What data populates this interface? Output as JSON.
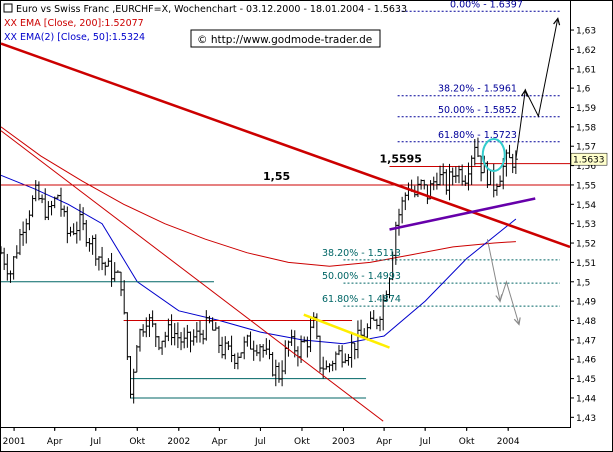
{
  "header": {
    "line1": "Euro vs Swiss Franc ,EURCHF=X, Wochenchart - 03.12.2000 - 18.01.2004 - 1.5633",
    "line2": "XX EMA [Close, 200]:1.52077",
    "line3": "XX EMA(2) [Close, 50]:1.5324",
    "copyright": "© http://www.godmode-trader.de"
  },
  "colors": {
    "price": "#000000",
    "ema200": "#cc0000",
    "ema50": "#0000cc",
    "resistance": "#cc0000",
    "support": "#006666",
    "fib_upper": "#000099",
    "fib_lower": "#006666",
    "wedge": "#6600aa",
    "yellow_line": "#ffee00",
    "circle": "#33cccc"
  },
  "chart_data": {
    "type": "line",
    "title": "Euro vs Swiss Franc ,EURCHF=X, Wochenchart - 03.12.2000 - 18.01.2004 - 1.5633",
    "ylim": [
      1.425,
      1.645
    ],
    "x_range": [
      "2000-12-03",
      "2004-05-17"
    ],
    "y_ticks": [
      "1,63",
      "1,62",
      "1,61",
      "1,6",
      "1,59",
      "1,58",
      "1,57",
      "1,56",
      "1,55",
      "1,54",
      "1,53",
      "1,52",
      "1,51",
      "1,5",
      "1,49",
      "1,48",
      "1,47",
      "1,46",
      "1,45",
      "1,44",
      "1,43"
    ],
    "y_tick_values": [
      1.63,
      1.62,
      1.61,
      1.6,
      1.59,
      1.58,
      1.57,
      1.56,
      1.55,
      1.54,
      1.53,
      1.52,
      1.51,
      1.5,
      1.49,
      1.48,
      1.47,
      1.46,
      1.45,
      1.44,
      1.43
    ],
    "x_ticks": [
      {
        "label": "2001",
        "date": "2001-01-01"
      },
      {
        "label": "Apr",
        "date": "2001-04-01"
      },
      {
        "label": "Jul",
        "date": "2001-07-01"
      },
      {
        "label": "Okt",
        "date": "2001-10-01"
      },
      {
        "label": "2002",
        "date": "2002-01-01"
      },
      {
        "label": "Apr",
        "date": "2002-04-01"
      },
      {
        "label": "Jul",
        "date": "2002-07-01"
      },
      {
        "label": "Okt",
        "date": "2002-10-01"
      },
      {
        "label": "2003",
        "date": "2003-01-01"
      },
      {
        "label": "Apr",
        "date": "2003-04-01"
      },
      {
        "label": "Jul",
        "date": "2003-07-01"
      },
      {
        "label": "Okt",
        "date": "2003-10-01"
      },
      {
        "label": "2004",
        "date": "2004-01-01"
      }
    ],
    "last_price": "1.5633",
    "price_anchors": [
      [
        "2000-12-03",
        1.515
      ],
      [
        "2000-12-24",
        1.505
      ],
      [
        "2001-01-21",
        1.53
      ],
      [
        "2001-02-18",
        1.545
      ],
      [
        "2001-03-18",
        1.535
      ],
      [
        "2001-04-08",
        1.545
      ],
      [
        "2001-04-29",
        1.525
      ],
      [
        "2001-05-27",
        1.53
      ],
      [
        "2001-06-24",
        1.52
      ],
      [
        "2001-07-15",
        1.51
      ],
      [
        "2001-08-05",
        1.505
      ],
      [
        "2001-08-26",
        1.5
      ],
      [
        "2001-09-16",
        1.442
      ],
      [
        "2001-09-30",
        1.47
      ],
      [
        "2001-10-21",
        1.482
      ],
      [
        "2001-11-18",
        1.47
      ],
      [
        "2001-12-16",
        1.475
      ],
      [
        "2002-01-13",
        1.468
      ],
      [
        "2002-02-10",
        1.472
      ],
      [
        "2002-03-10",
        1.478
      ],
      [
        "2002-04-07",
        1.465
      ],
      [
        "2002-05-05",
        1.462
      ],
      [
        "2002-06-02",
        1.468
      ],
      [
        "2002-06-30",
        1.468
      ],
      [
        "2002-07-21",
        1.458
      ],
      [
        "2002-08-11",
        1.452
      ],
      [
        "2002-09-01",
        1.468
      ],
      [
        "2002-09-22",
        1.465
      ],
      [
        "2002-10-13",
        1.47
      ],
      [
        "2002-10-27",
        1.478
      ],
      [
        "2002-11-10",
        1.458
      ],
      [
        "2002-11-24",
        1.455
      ],
      [
        "2002-12-15",
        1.462
      ],
      [
        "2003-01-12",
        1.465
      ],
      [
        "2003-02-02",
        1.47
      ],
      [
        "2003-02-23",
        1.475
      ],
      [
        "2003-03-16",
        1.48
      ],
      [
        "2003-03-30",
        1.49
      ],
      [
        "2003-04-13",
        1.505
      ],
      [
        "2003-04-27",
        1.53
      ],
      [
        "2003-05-11",
        1.54
      ],
      [
        "2003-05-25",
        1.55
      ],
      [
        "2003-06-08",
        1.545
      ],
      [
        "2003-06-22",
        1.55
      ],
      [
        "2003-07-06",
        1.545
      ],
      [
        "2003-07-27",
        1.555
      ],
      [
        "2003-08-17",
        1.55
      ],
      [
        "2003-09-07",
        1.558
      ],
      [
        "2003-09-28",
        1.555
      ],
      [
        "2003-10-19",
        1.572
      ],
      [
        "2003-11-02",
        1.56
      ],
      [
        "2003-11-16",
        1.555
      ],
      [
        "2003-11-30",
        1.55
      ],
      [
        "2003-12-14",
        1.556
      ],
      [
        "2003-12-28",
        1.562
      ],
      [
        "2004-01-18",
        1.5633
      ]
    ],
    "series": [
      {
        "name": "XX EMA [Close, 200]:1.52077",
        "points": [
          [
            "2000-12-03",
            1.58
          ],
          [
            "2001-03-01",
            1.565
          ],
          [
            "2001-06-01",
            1.552
          ],
          [
            "2001-09-01",
            1.54
          ],
          [
            "2001-12-01",
            1.53
          ],
          [
            "2002-03-01",
            1.522
          ],
          [
            "2002-06-01",
            1.515
          ],
          [
            "2002-09-01",
            1.51
          ],
          [
            "2002-12-01",
            1.508
          ],
          [
            "2003-03-01",
            1.51
          ],
          [
            "2003-06-01",
            1.514
          ],
          [
            "2003-09-01",
            1.518
          ],
          [
            "2003-12-01",
            1.52
          ],
          [
            "2004-01-18",
            1.52077
          ]
        ]
      },
      {
        "name": "XX EMA(2) [Close, 50]:1.5324",
        "points": [
          [
            "2000-12-03",
            1.555
          ],
          [
            "2001-02-15",
            1.548
          ],
          [
            "2001-05-01",
            1.54
          ],
          [
            "2001-07-15",
            1.53
          ],
          [
            "2001-10-01",
            1.5
          ],
          [
            "2002-01-01",
            1.485
          ],
          [
            "2002-04-01",
            1.48
          ],
          [
            "2002-07-01",
            1.474
          ],
          [
            "2002-10-01",
            1.47
          ],
          [
            "2003-01-01",
            1.468
          ],
          [
            "2003-04-01",
            1.472
          ],
          [
            "2003-07-01",
            1.49
          ],
          [
            "2003-10-01",
            1.512
          ],
          [
            "2004-01-18",
            1.5324
          ]
        ]
      }
    ],
    "annotations": {
      "fib_upper": [
        {
          "label": "0.00% - 1.6397",
          "value": 1.6397
        },
        {
          "label": "38.20% - 1.5961",
          "value": 1.5961
        },
        {
          "label": "50.00% - 1.5852",
          "value": 1.5852
        },
        {
          "label": "61.80% - 1.5723",
          "value": 1.5723
        }
      ],
      "fib_lower": [
        {
          "label": "38.20% - 1.5113",
          "value": 1.5113
        },
        {
          "label": "50.00% - 1.4993",
          "value": 1.4993
        },
        {
          "label": "61.80% - 1.4874",
          "value": 1.4874
        }
      ],
      "level_155": {
        "label": "1,55",
        "value": 1.55
      },
      "level_15595": {
        "label": "1,5595",
        "value": 1.5595
      },
      "support_levels": [
        1.5,
        1.48,
        1.45,
        1.44
      ],
      "resistance_line": {
        "start": [
          "2000-12-03",
          1.623
        ],
        "end": [
          "2004-05-17",
          1.518
        ]
      },
      "falling_line": {
        "start": [
          "2000-12-03",
          1.578
        ],
        "end": [
          "2003-03-30",
          1.428
        ]
      },
      "wedge_line": {
        "start": [
          "2003-04-13",
          1.527
        ],
        "end": [
          "2004-03-01",
          1.543
        ]
      },
      "yellow_line": {
        "start": [
          "2002-10-05",
          1.483
        ],
        "end": [
          "2003-04-13",
          1.466
        ]
      },
      "current_level": 1.561
    }
  }
}
